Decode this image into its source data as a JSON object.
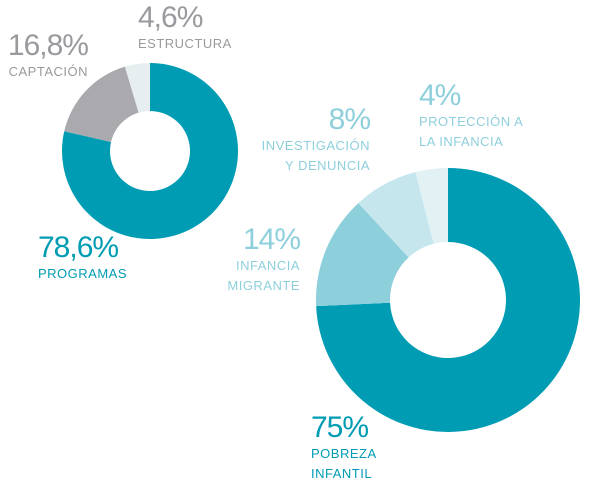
{
  "chart_data": [
    {
      "type": "donut",
      "categories": [
        "PROGRAMAS",
        "CAPTACIÓN",
        "ESTRUCTURA"
      ],
      "values": [
        78.6,
        16.8,
        4.6
      ],
      "value_labels": [
        "78,6%",
        "16,8%",
        "4,6%"
      ],
      "colors": [
        "#009cb4",
        "#a9a9ae",
        "#e6eef0"
      ],
      "label_colors": [
        "#009cb4",
        "#9a9a9e",
        "#9a9a9e"
      ]
    },
    {
      "type": "donut",
      "categories": [
        "POBREZA INFANTIL",
        "INFANCIA MIGRANTE",
        "INVESTIGACIÓN Y DENUNCIA",
        "PROTECCIÓN A LA INFANCIA"
      ],
      "values": [
        75,
        14,
        8,
        4
      ],
      "value_labels": [
        "75%",
        "14%",
        "8%",
        "4%"
      ],
      "colors": [
        "#009cb4",
        "#8ecfdc",
        "#c5e6ed",
        "#e2f1f4"
      ],
      "label_colors": [
        "#009cb4",
        "#8ecfdc",
        "#8ecfdc",
        "#8ecfdc"
      ]
    }
  ]
}
